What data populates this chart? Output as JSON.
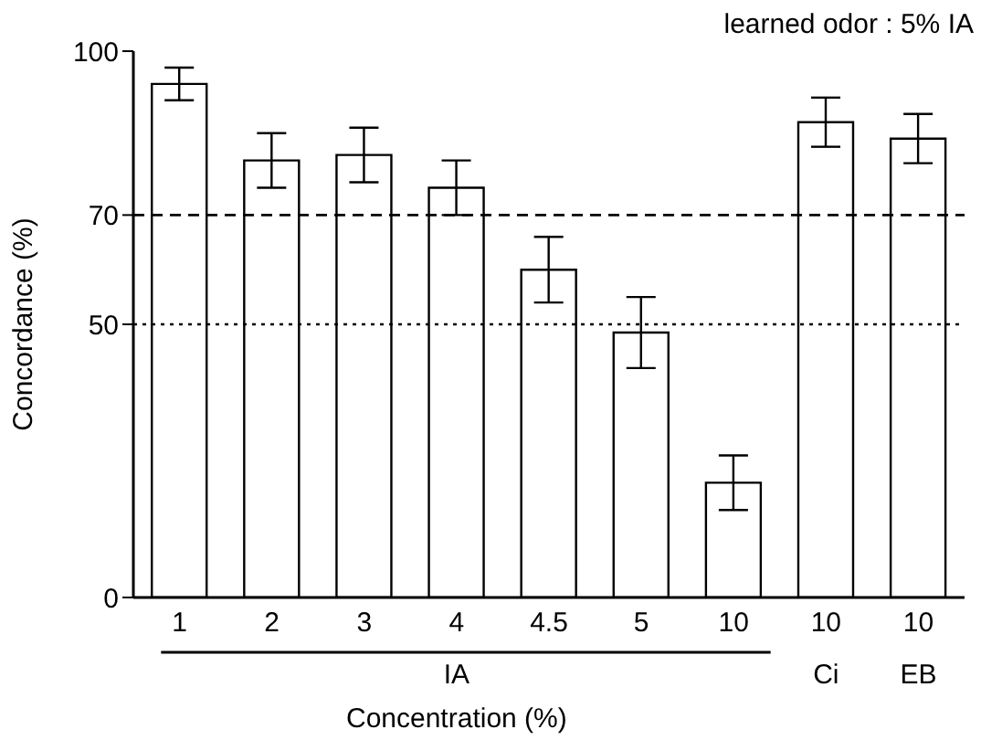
{
  "chart_data": {
    "type": "bar",
    "ylabel": "Concordance (%)",
    "xlabel": "Concentration (%)",
    "categories": [
      "1",
      "2",
      "3",
      "4",
      "4.5",
      "5",
      "10",
      "10",
      "10"
    ],
    "values": [
      94,
      80,
      81,
      75,
      60,
      48.5,
      21,
      87,
      84
    ],
    "errors": [
      3,
      5,
      5,
      5,
      6,
      6.5,
      5,
      4.5,
      4.5
    ],
    "color": "#ffffff",
    "ylim": [
      0,
      100
    ],
    "yticks": [
      0,
      50,
      70,
      100
    ],
    "ref_lines": [
      {
        "axis": "y",
        "value": 70,
        "color": "#000000",
        "line_style": "dashed"
      },
      {
        "axis": "y",
        "value": 50,
        "color": "#000000",
        "line_style": "dotted"
      }
    ],
    "annotations": [
      "learned odor : 5% IA",
      "IA",
      "Ci",
      "EB"
    ]
  }
}
